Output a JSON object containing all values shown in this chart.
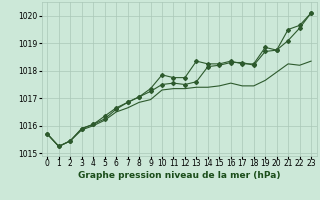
{
  "title": "Graphe pression niveau de la mer (hPa)",
  "bg_color": "#cce8d8",
  "grid_color": "#aac8b8",
  "line_color": "#2d5a2d",
  "x": [
    0,
    1,
    2,
    3,
    4,
    5,
    6,
    7,
    8,
    9,
    10,
    11,
    12,
    13,
    14,
    15,
    16,
    17,
    18,
    19,
    20,
    21,
    22,
    23
  ],
  "line1": [
    1015.7,
    1015.25,
    1015.45,
    1015.9,
    1016.05,
    1016.35,
    1016.65,
    1016.85,
    1017.05,
    1017.35,
    1017.85,
    1017.75,
    1017.75,
    1018.35,
    1018.25,
    1018.25,
    1018.35,
    1018.25,
    1018.25,
    1018.85,
    1018.75,
    1019.5,
    1019.65,
    1020.1
  ],
  "line2": [
    1015.7,
    1015.25,
    1015.45,
    1015.9,
    1016.05,
    1016.25,
    1016.6,
    1016.85,
    1017.05,
    1017.25,
    1017.5,
    1017.55,
    1017.5,
    1017.6,
    1018.15,
    1018.2,
    1018.3,
    1018.3,
    1018.2,
    1018.7,
    1018.75,
    1019.1,
    1019.55,
    1020.1
  ],
  "line3": [
    1015.7,
    1015.25,
    1015.45,
    1015.85,
    1016.0,
    1016.2,
    1016.5,
    1016.65,
    1016.85,
    1016.95,
    1017.3,
    1017.35,
    1017.35,
    1017.4,
    1017.4,
    1017.45,
    1017.55,
    1017.45,
    1017.45,
    1017.65,
    1017.95,
    1018.25,
    1018.2,
    1018.35
  ],
  "ylim": [
    1014.9,
    1020.5
  ],
  "yticks": [
    1015,
    1016,
    1017,
    1018,
    1019,
    1020
  ],
  "xlim": [
    -0.5,
    23.5
  ],
  "tick_fontsize": 5.5,
  "title_fontsize": 6.5,
  "title_color": "#1a4d1a",
  "marker": "D",
  "marker_size": 2.0,
  "linewidth": 0.8
}
